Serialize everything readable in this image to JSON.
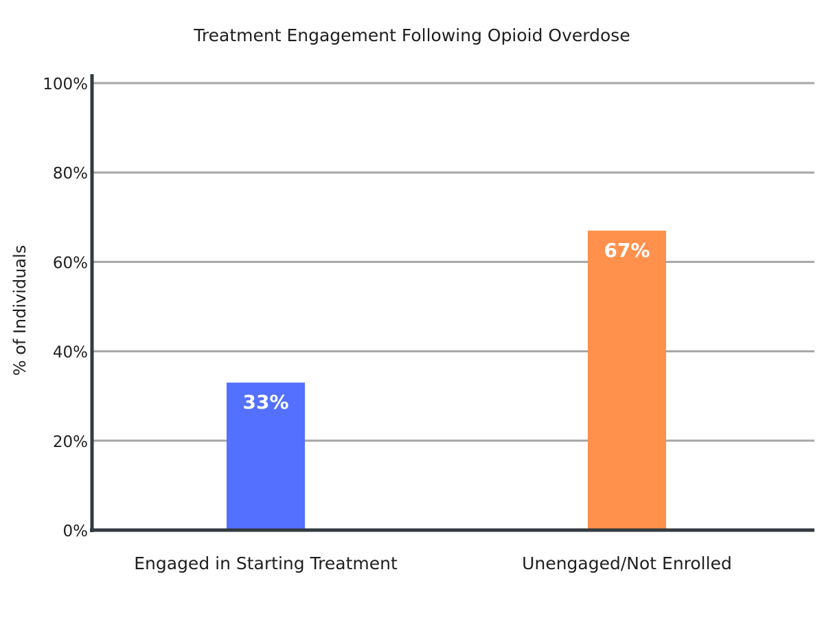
{
  "chart_data": {
    "type": "bar",
    "title": "Treatment Engagement Following Opioid Overdose",
    "xlabel": "",
    "ylabel": "% of Individuals",
    "categories": [
      "Engaged in Starting Treatment",
      "Unengaged/Not Enrolled"
    ],
    "values": [
      33,
      67
    ],
    "data_labels": [
      "33%",
      "67%"
    ],
    "colors": [
      "#5470ff",
      "#ff914d"
    ],
    "ylim": [
      0,
      100
    ],
    "yticks": [
      0,
      20,
      40,
      60,
      80,
      100
    ],
    "ytick_labels": [
      "0%",
      "20%",
      "40%",
      "60%",
      "80%",
      "100%"
    ],
    "grid": true,
    "legend": "none"
  }
}
